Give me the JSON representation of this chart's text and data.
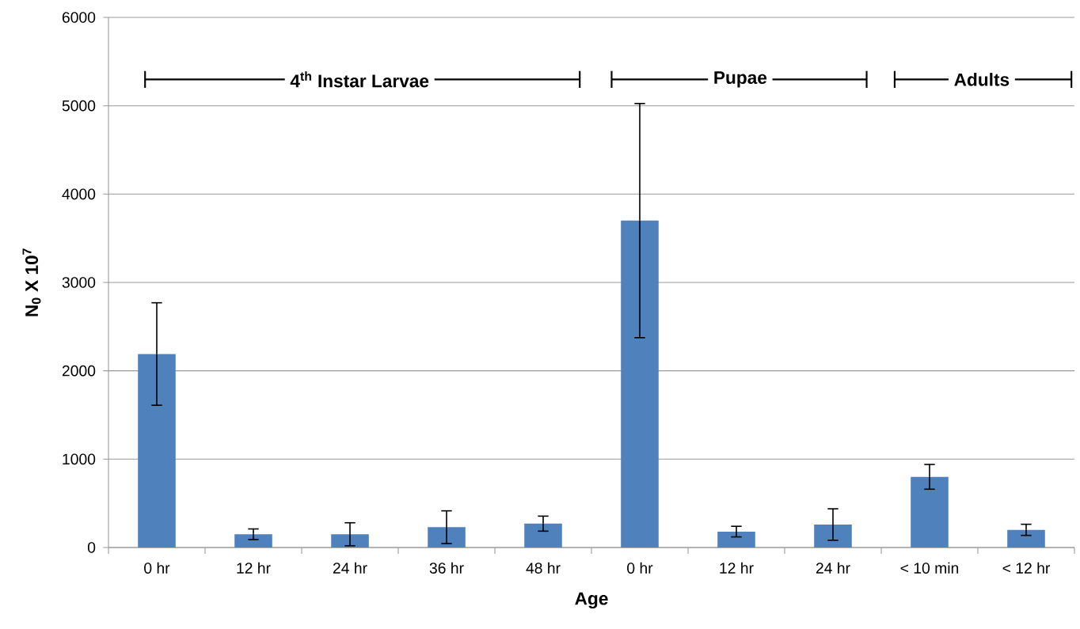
{
  "chart_data": {
    "type": "bar",
    "xlabel": "Age",
    "ylabel": "N$_{0}$ X 10$^{7}$",
    "categories": [
      "0 hr",
      "12 hr",
      "24 hr",
      "36 hr",
      "48 hr",
      "0 hr",
      "12 hr",
      "24 hr",
      "< 10 min",
      "< 12 hr"
    ],
    "values": [
      2190,
      150,
      150,
      230,
      270,
      3700,
      180,
      260,
      800,
      200
    ],
    "errors": [
      580,
      60,
      130,
      185,
      85,
      1325,
      60,
      178,
      140,
      63
    ],
    "color": "#4f81bd",
    "ylim": [
      0,
      6000
    ],
    "yticks": [
      0,
      1000,
      2000,
      3000,
      4000,
      5000,
      6000
    ],
    "grid": "y",
    "annotations": [
      "4$^{th}$ Instar Larvae",
      "Pupae",
      "Adults"
    ]
  }
}
